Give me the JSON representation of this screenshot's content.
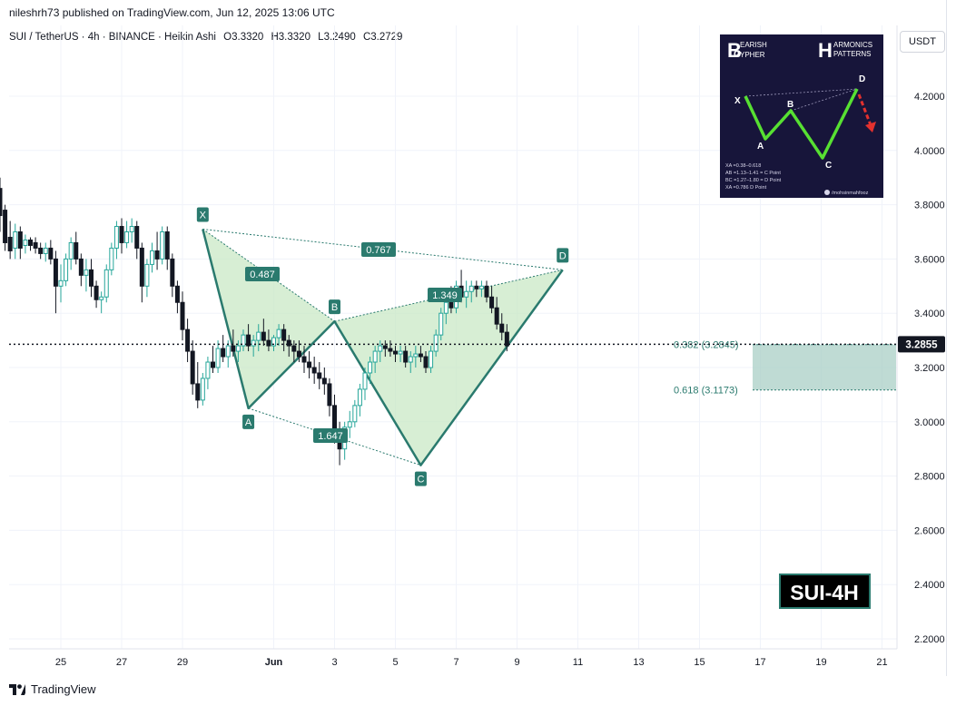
{
  "header": {
    "publisher": "nileshrh73 published on TradingView.com, Jun 12, 2025 13:06 UTC"
  },
  "symbol": {
    "name": "SUI / TetherUS · 4h · BINANCE · Heikin Ashi",
    "open": "O3.3320",
    "high": "H3.3320",
    "low": "L3.2490",
    "close": "C3.2729"
  },
  "currency_button": "USDT",
  "footer": {
    "brand": "TradingView"
  },
  "chart_data": {
    "type": "candlestick",
    "y_axis": {
      "ticks": [
        "4.2000",
        "4.0000",
        "3.8000",
        "3.6000",
        "3.4000",
        "3.2000",
        "3.0000",
        "2.8000",
        "2.6000",
        "2.4000",
        "2.2000"
      ],
      "range": [
        2.16,
        4.42
      ]
    },
    "x_axis": {
      "ticks": [
        "25",
        "27",
        "29",
        "Jun",
        "3",
        "5",
        "7",
        "9",
        "11",
        "13",
        "15",
        "17",
        "19",
        "21"
      ]
    },
    "grid": true,
    "current_price": {
      "value": 3.2855,
      "label": "3.2855",
      "color": "#131722"
    },
    "pattern": {
      "name": "Bearish Cypher",
      "color": "#2a7a6e",
      "fill": "#c9e8c5",
      "points": [
        {
          "label": "X",
          "date": "2025-05-29T16:00",
          "price": 3.71
        },
        {
          "label": "A",
          "date": "2025-05-31T04:00",
          "price": 3.05
        },
        {
          "label": "B",
          "date": "2025-06-03T00:00",
          "price": 3.37
        },
        {
          "label": "C",
          "date": "2025-06-05T20:00",
          "price": 2.84
        },
        {
          "label": "D",
          "date": "2025-06-10T12:00",
          "price": 3.56
        }
      ],
      "ratios": [
        {
          "label": "0.487",
          "between": [
            "X",
            "B"
          ]
        },
        {
          "label": "0.767",
          "between": [
            "X",
            "D"
          ]
        },
        {
          "label": "1.349",
          "between": [
            "B",
            "D"
          ]
        },
        {
          "label": "1.647",
          "between": [
            "A",
            "C"
          ]
        }
      ]
    },
    "fib_levels": [
      {
        "label": "0.382 (3.2845)",
        "value": 3.2845
      },
      {
        "label": "0.618 (3.1173)",
        "value": 3.1173
      }
    ],
    "target_zone": {
      "from": 3.1173,
      "to": 3.2845,
      "color": "#a9cfc6"
    },
    "badge": "SUI-4H",
    "candles": [
      {
        "o": 3.86,
        "h": 3.9,
        "l": 3.7,
        "c": 3.76
      },
      {
        "o": 3.78,
        "h": 3.8,
        "l": 3.63,
        "c": 3.66
      },
      {
        "o": 3.68,
        "h": 3.74,
        "l": 3.6,
        "c": 3.63
      },
      {
        "o": 3.64,
        "h": 3.73,
        "l": 3.6,
        "c": 3.7
      },
      {
        "o": 3.7,
        "h": 3.72,
        "l": 3.6,
        "c": 3.64
      },
      {
        "o": 3.65,
        "h": 3.69,
        "l": 3.62,
        "c": 3.67
      },
      {
        "o": 3.67,
        "h": 3.68,
        "l": 3.63,
        "c": 3.65
      },
      {
        "o": 3.66,
        "h": 3.68,
        "l": 3.62,
        "c": 3.64
      },
      {
        "o": 3.64,
        "h": 3.66,
        "l": 3.6,
        "c": 3.62
      },
      {
        "o": 3.62,
        "h": 3.66,
        "l": 3.59,
        "c": 3.64
      },
      {
        "o": 3.64,
        "h": 3.67,
        "l": 3.58,
        "c": 3.6
      },
      {
        "o": 3.6,
        "h": 3.63,
        "l": 3.4,
        "c": 3.5
      },
      {
        "o": 3.5,
        "h": 3.58,
        "l": 3.44,
        "c": 3.52
      },
      {
        "o": 3.52,
        "h": 3.62,
        "l": 3.5,
        "c": 3.6
      },
      {
        "o": 3.6,
        "h": 3.68,
        "l": 3.56,
        "c": 3.66
      },
      {
        "o": 3.66,
        "h": 3.7,
        "l": 3.58,
        "c": 3.6
      },
      {
        "o": 3.6,
        "h": 3.62,
        "l": 3.5,
        "c": 3.54
      },
      {
        "o": 3.54,
        "h": 3.6,
        "l": 3.48,
        "c": 3.56
      },
      {
        "o": 3.56,
        "h": 3.6,
        "l": 3.46,
        "c": 3.5
      },
      {
        "o": 3.5,
        "h": 3.52,
        "l": 3.42,
        "c": 3.45
      },
      {
        "o": 3.45,
        "h": 3.48,
        "l": 3.4,
        "c": 3.46
      },
      {
        "o": 3.46,
        "h": 3.58,
        "l": 3.44,
        "c": 3.56
      },
      {
        "o": 3.56,
        "h": 3.66,
        "l": 3.54,
        "c": 3.64
      },
      {
        "o": 3.64,
        "h": 3.74,
        "l": 3.6,
        "c": 3.72
      },
      {
        "o": 3.72,
        "h": 3.75,
        "l": 3.62,
        "c": 3.66
      },
      {
        "o": 3.66,
        "h": 3.74,
        "l": 3.64,
        "c": 3.7
      },
      {
        "o": 3.7,
        "h": 3.75,
        "l": 3.66,
        "c": 3.72
      },
      {
        "o": 3.72,
        "h": 3.74,
        "l": 3.6,
        "c": 3.64
      },
      {
        "o": 3.64,
        "h": 3.66,
        "l": 3.44,
        "c": 3.5
      },
      {
        "o": 3.5,
        "h": 3.6,
        "l": 3.46,
        "c": 3.58
      },
      {
        "o": 3.58,
        "h": 3.66,
        "l": 3.55,
        "c": 3.63
      },
      {
        "o": 3.63,
        "h": 3.7,
        "l": 3.56,
        "c": 3.6
      },
      {
        "o": 3.6,
        "h": 3.72,
        "l": 3.58,
        "c": 3.7
      },
      {
        "o": 3.7,
        "h": 3.72,
        "l": 3.56,
        "c": 3.6
      },
      {
        "o": 3.6,
        "h": 3.62,
        "l": 3.46,
        "c": 3.5
      },
      {
        "o": 3.5,
        "h": 3.52,
        "l": 3.4,
        "c": 3.44
      },
      {
        "o": 3.44,
        "h": 3.48,
        "l": 3.3,
        "c": 3.34
      },
      {
        "o": 3.34,
        "h": 3.38,
        "l": 3.22,
        "c": 3.26
      },
      {
        "o": 3.26,
        "h": 3.3,
        "l": 3.1,
        "c": 3.14
      },
      {
        "o": 3.14,
        "h": 3.22,
        "l": 3.05,
        "c": 3.08
      },
      {
        "o": 3.08,
        "h": 3.18,
        "l": 3.06,
        "c": 3.16
      },
      {
        "o": 3.16,
        "h": 3.24,
        "l": 3.12,
        "c": 3.22
      },
      {
        "o": 3.22,
        "h": 3.28,
        "l": 3.18,
        "c": 3.2
      },
      {
        "o": 3.2,
        "h": 3.3,
        "l": 3.18,
        "c": 3.27
      },
      {
        "o": 3.27,
        "h": 3.32,
        "l": 3.22,
        "c": 3.24
      },
      {
        "o": 3.24,
        "h": 3.3,
        "l": 3.2,
        "c": 3.28
      },
      {
        "o": 3.28,
        "h": 3.34,
        "l": 3.24,
        "c": 3.26
      },
      {
        "o": 3.26,
        "h": 3.3,
        "l": 3.22,
        "c": 3.28
      },
      {
        "o": 3.28,
        "h": 3.34,
        "l": 3.26,
        "c": 3.32
      },
      {
        "o": 3.32,
        "h": 3.36,
        "l": 3.26,
        "c": 3.28
      },
      {
        "o": 3.28,
        "h": 3.32,
        "l": 3.24,
        "c": 3.3
      },
      {
        "o": 3.3,
        "h": 3.36,
        "l": 3.26,
        "c": 3.33
      },
      {
        "o": 3.33,
        "h": 3.38,
        "l": 3.28,
        "c": 3.3
      },
      {
        "o": 3.3,
        "h": 3.34,
        "l": 3.26,
        "c": 3.28
      },
      {
        "o": 3.28,
        "h": 3.32,
        "l": 3.26,
        "c": 3.31
      },
      {
        "o": 3.31,
        "h": 3.36,
        "l": 3.28,
        "c": 3.34
      },
      {
        "o": 3.34,
        "h": 3.36,
        "l": 3.26,
        "c": 3.3
      },
      {
        "o": 3.3,
        "h": 3.32,
        "l": 3.24,
        "c": 3.28
      },
      {
        "o": 3.28,
        "h": 3.3,
        "l": 3.22,
        "c": 3.26
      },
      {
        "o": 3.26,
        "h": 3.3,
        "l": 3.22,
        "c": 3.24
      },
      {
        "o": 3.24,
        "h": 3.28,
        "l": 3.18,
        "c": 3.22
      },
      {
        "o": 3.22,
        "h": 3.26,
        "l": 3.16,
        "c": 3.2
      },
      {
        "o": 3.2,
        "h": 3.24,
        "l": 3.14,
        "c": 3.18
      },
      {
        "o": 3.18,
        "h": 3.22,
        "l": 3.12,
        "c": 3.16
      },
      {
        "o": 3.16,
        "h": 3.2,
        "l": 3.1,
        "c": 3.14
      },
      {
        "o": 3.14,
        "h": 3.16,
        "l": 3.02,
        "c": 3.06
      },
      {
        "o": 3.06,
        "h": 3.1,
        "l": 2.92,
        "c": 2.96
      },
      {
        "o": 2.96,
        "h": 3.0,
        "l": 2.84,
        "c": 2.9
      },
      {
        "o": 2.9,
        "h": 3.0,
        "l": 2.86,
        "c": 2.98
      },
      {
        "o": 2.98,
        "h": 3.04,
        "l": 2.94,
        "c": 3.0
      },
      {
        "o": 3.0,
        "h": 3.08,
        "l": 2.98,
        "c": 3.06
      },
      {
        "o": 3.06,
        "h": 3.14,
        "l": 3.02,
        "c": 3.12
      },
      {
        "o": 3.12,
        "h": 3.2,
        "l": 3.08,
        "c": 3.18
      },
      {
        "o": 3.18,
        "h": 3.24,
        "l": 3.14,
        "c": 3.22
      },
      {
        "o": 3.22,
        "h": 3.28,
        "l": 3.18,
        "c": 3.26
      },
      {
        "o": 3.26,
        "h": 3.3,
        "l": 3.22,
        "c": 3.28
      },
      {
        "o": 3.28,
        "h": 3.3,
        "l": 3.24,
        "c": 3.27
      },
      {
        "o": 3.27,
        "h": 3.3,
        "l": 3.24,
        "c": 3.26
      },
      {
        "o": 3.26,
        "h": 3.28,
        "l": 3.22,
        "c": 3.25
      },
      {
        "o": 3.25,
        "h": 3.28,
        "l": 3.22,
        "c": 3.26
      },
      {
        "o": 3.26,
        "h": 3.28,
        "l": 3.2,
        "c": 3.22
      },
      {
        "o": 3.22,
        "h": 3.26,
        "l": 3.18,
        "c": 3.24
      },
      {
        "o": 3.24,
        "h": 3.28,
        "l": 3.2,
        "c": 3.25
      },
      {
        "o": 3.25,
        "h": 3.28,
        "l": 3.22,
        "c": 3.24
      },
      {
        "o": 3.24,
        "h": 3.26,
        "l": 3.18,
        "c": 3.2
      },
      {
        "o": 3.2,
        "h": 3.28,
        "l": 3.18,
        "c": 3.26
      },
      {
        "o": 3.26,
        "h": 3.34,
        "l": 3.24,
        "c": 3.32
      },
      {
        "o": 3.32,
        "h": 3.42,
        "l": 3.3,
        "c": 3.4
      },
      {
        "o": 3.4,
        "h": 3.48,
        "l": 3.36,
        "c": 3.44
      },
      {
        "o": 3.44,
        "h": 3.5,
        "l": 3.4,
        "c": 3.42
      },
      {
        "o": 3.42,
        "h": 3.52,
        "l": 3.4,
        "c": 3.5
      },
      {
        "o": 3.5,
        "h": 3.56,
        "l": 3.44,
        "c": 3.46
      },
      {
        "o": 3.46,
        "h": 3.52,
        "l": 3.42,
        "c": 3.48
      },
      {
        "o": 3.48,
        "h": 3.52,
        "l": 3.44,
        "c": 3.5
      },
      {
        "o": 3.5,
        "h": 3.52,
        "l": 3.46,
        "c": 3.49
      },
      {
        "o": 3.49,
        "h": 3.52,
        "l": 3.46,
        "c": 3.5
      },
      {
        "o": 3.5,
        "h": 3.52,
        "l": 3.44,
        "c": 3.46
      },
      {
        "o": 3.46,
        "h": 3.5,
        "l": 3.4,
        "c": 3.42
      },
      {
        "o": 3.42,
        "h": 3.46,
        "l": 3.34,
        "c": 3.36
      },
      {
        "o": 3.36,
        "h": 3.4,
        "l": 3.3,
        "c": 3.33
      },
      {
        "o": 3.33,
        "h": 3.36,
        "l": 3.26,
        "c": 3.28
      }
    ]
  },
  "inset": {
    "title_left": "EARISH",
    "title_left2": "YPHER",
    "title_right": "ARMONICS",
    "title_right2": "PATTERNS",
    "big_b": "B",
    "big_c": "C",
    "big_h": "H",
    "point_x": "X",
    "point_a": "A",
    "point_b": "B",
    "point_c": "C",
    "point_d": "D",
    "rule1": "XA =0.38–0.618",
    "rule2": "AB =1.13–1.41 = C Point",
    "rule3": "BC =1.27–1.80 = D Point",
    "rule4": "XA =0.786 D Point",
    "credit": "/mohsinmahfooz"
  },
  "colors": {
    "bull": "#26a69a",
    "bear": "#131722",
    "pattern": "#2a7a6e",
    "grid": "#f0f3fa",
    "inset_bg": "#17153a",
    "inset_line": "#57e032",
    "inset_arrow": "#e3312e"
  }
}
